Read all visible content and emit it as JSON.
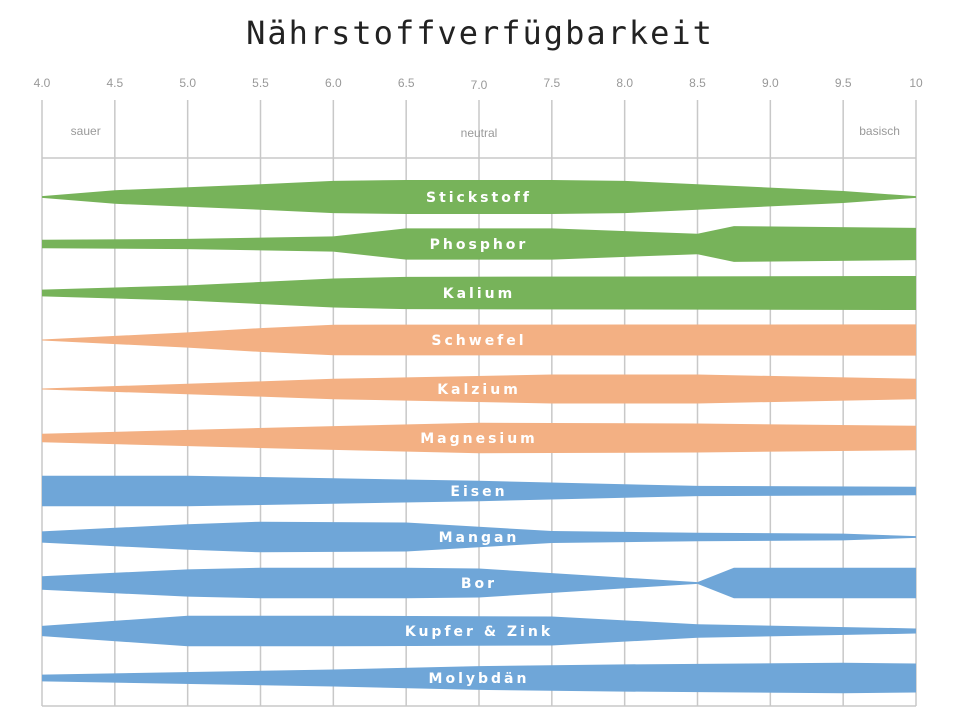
{
  "chart_data": {
    "type": "area",
    "title": "Nährstoffverfügbarkeit",
    "xlim": [
      4.0,
      10
    ],
    "x_ticks": [
      "4.0",
      "4.5",
      "5.0",
      "5.5",
      "6.0",
      "6.5",
      "7.0",
      "7.5",
      "8.0",
      "8.5",
      "9.0",
      "9.5",
      "10"
    ],
    "zones": [
      {
        "label": "sauer",
        "ph": 4.3
      },
      {
        "label": "neutral",
        "ph": 7.0
      },
      {
        "label": "basisch",
        "ph": 9.75
      }
    ],
    "grid": true,
    "colors": {
      "green": "#77b35a",
      "orange": "#f3b083",
      "blue": "#6fa6d8"
    },
    "series": [
      {
        "name": "Stickstoff",
        "color": "#77b35a",
        "points": [
          [
            4.0,
            0.05
          ],
          [
            4.5,
            0.4
          ],
          [
            5.5,
            0.75
          ],
          [
            6.0,
            0.95
          ],
          [
            6.5,
            1.0
          ],
          [
            7.5,
            1.0
          ],
          [
            8.0,
            0.95
          ],
          [
            8.5,
            0.75
          ],
          [
            9.5,
            0.35
          ],
          [
            10,
            0.05
          ]
        ]
      },
      {
        "name": "Phosphor",
        "color": "#77b35a",
        "points": [
          [
            4.0,
            0.25
          ],
          [
            5.0,
            0.3
          ],
          [
            6.0,
            0.45
          ],
          [
            6.5,
            0.92
          ],
          [
            7.5,
            0.92
          ],
          [
            8.5,
            0.6
          ],
          [
            8.75,
            1.05
          ],
          [
            10,
            0.95
          ]
        ]
      },
      {
        "name": "Kalium",
        "color": "#77b35a",
        "points": [
          [
            4.0,
            0.2
          ],
          [
            5.0,
            0.45
          ],
          [
            6.0,
            0.85
          ],
          [
            6.5,
            0.95
          ],
          [
            10,
            1.0
          ]
        ]
      },
      {
        "name": "Schwefel",
        "color": "#f3b083",
        "points": [
          [
            4.0,
            0.03
          ],
          [
            5.0,
            0.45
          ],
          [
            5.5,
            0.7
          ],
          [
            6.0,
            0.9
          ],
          [
            10,
            0.92
          ]
        ]
      },
      {
        "name": "Kalzium",
        "color": "#f3b083",
        "points": [
          [
            4.0,
            0.03
          ],
          [
            5.5,
            0.45
          ],
          [
            6.0,
            0.6
          ],
          [
            7.5,
            0.85
          ],
          [
            8.5,
            0.85
          ],
          [
            10,
            0.6
          ]
        ]
      },
      {
        "name": "Magnesium",
        "color": "#f3b083",
        "points": [
          [
            4.0,
            0.25
          ],
          [
            6.0,
            0.7
          ],
          [
            7.0,
            0.9
          ],
          [
            8.5,
            0.85
          ],
          [
            10,
            0.72
          ]
        ]
      },
      {
        "name": "Eisen",
        "color": "#6fa6d8",
        "points": [
          [
            4.0,
            0.9
          ],
          [
            5.0,
            0.9
          ],
          [
            6.0,
            0.75
          ],
          [
            7.0,
            0.6
          ],
          [
            8.5,
            0.3
          ],
          [
            10,
            0.25
          ]
        ]
      },
      {
        "name": "Mangan",
        "color": "#6fa6d8",
        "points": [
          [
            4.0,
            0.33
          ],
          [
            5.0,
            0.75
          ],
          [
            5.5,
            0.9
          ],
          [
            6.5,
            0.85
          ],
          [
            7.5,
            0.35
          ],
          [
            8.5,
            0.25
          ],
          [
            9.5,
            0.2
          ],
          [
            10,
            0.05
          ]
        ]
      },
      {
        "name": "Bor",
        "color": "#6fa6d8",
        "points": [
          [
            4.0,
            0.4
          ],
          [
            5.0,
            0.8
          ],
          [
            5.5,
            0.9
          ],
          [
            6.5,
            0.9
          ],
          [
            7.0,
            0.85
          ],
          [
            8.5,
            0.05
          ],
          [
            8.75,
            0.9
          ],
          [
            10,
            0.9
          ]
        ]
      },
      {
        "name": "Kupfer & Zink",
        "color": "#6fa6d8",
        "points": [
          [
            4.0,
            0.3
          ],
          [
            5.0,
            0.9
          ],
          [
            6.0,
            0.9
          ],
          [
            7.5,
            0.85
          ],
          [
            8.5,
            0.4
          ],
          [
            10,
            0.15
          ]
        ]
      },
      {
        "name": "Molybdän",
        "color": "#6fa6d8",
        "points": [
          [
            4.0,
            0.2
          ],
          [
            6.0,
            0.5
          ],
          [
            7.0,
            0.7
          ],
          [
            8.0,
            0.8
          ],
          [
            9.5,
            0.9
          ],
          [
            10,
            0.85
          ]
        ]
      }
    ]
  }
}
